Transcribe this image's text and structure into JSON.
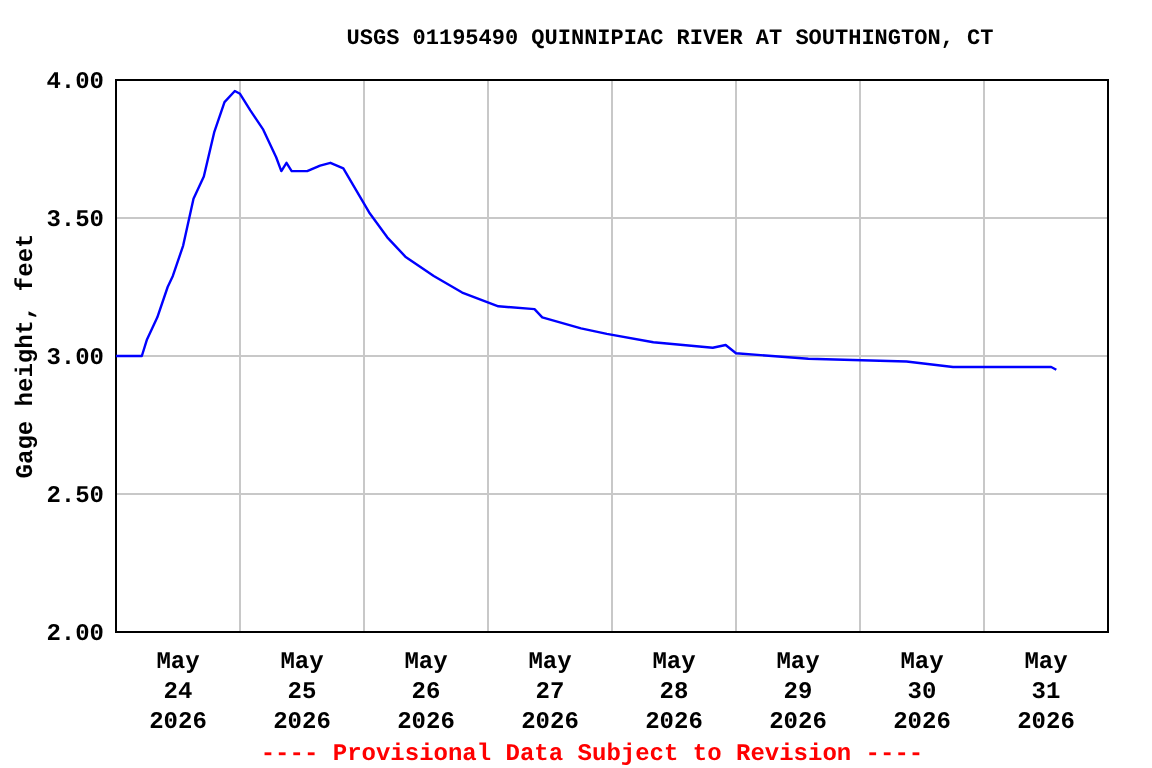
{
  "chart_data": {
    "type": "line",
    "title": "USGS 01195490 QUINNIPIAC RIVER AT SOUTHINGTON, CT",
    "ylabel": "Gage height, feet",
    "annotations": [
      "---- Provisional Data Subject to Revision ----"
    ],
    "series": [
      {
        "color": "#0000ff",
        "x": [
          "2026-05-24T00:00",
          "2026-05-24T05:00",
          "2026-05-24T06:00",
          "2026-05-24T08:00",
          "2026-05-24T10:00",
          "2026-05-24T11:00",
          "2026-05-24T13:00",
          "2026-05-24T15:00",
          "2026-05-24T17:00",
          "2026-05-24T19:00",
          "2026-05-24T21:00",
          "2026-05-24T23:00",
          "2026-05-25T00:00",
          "2026-05-25T02:00",
          "2026-05-25T04:30",
          "2026-05-25T07:00",
          "2026-05-25T08:00",
          "2026-05-25T09:00",
          "2026-05-25T10:00",
          "2026-05-25T13:00",
          "2026-05-25T15:30",
          "2026-05-25T17:30",
          "2026-05-25T20:00",
          "2026-05-25T22:30",
          "2026-05-26T01:00",
          "2026-05-26T04:30",
          "2026-05-26T08:00",
          "2026-05-26T13:30",
          "2026-05-26T19:00",
          "2026-05-27T02:00",
          "2026-05-27T09:00",
          "2026-05-27T10:30",
          "2026-05-27T18:00",
          "2026-05-27T23:00",
          "2026-05-28T08:00",
          "2026-05-28T19:30",
          "2026-05-28T22:00",
          "2026-05-29T00:00",
          "2026-05-29T14:00",
          "2026-05-30T09:00",
          "2026-05-30T18:00",
          "2026-05-31T13:00",
          "2026-05-31T14:00"
        ],
        "values": [
          3.0,
          3.0,
          3.06,
          3.14,
          3.25,
          3.29,
          3.4,
          3.57,
          3.65,
          3.81,
          3.92,
          3.96,
          3.95,
          3.89,
          3.82,
          3.72,
          3.67,
          3.7,
          3.67,
          3.67,
          3.69,
          3.7,
          3.68,
          3.6,
          3.52,
          3.43,
          3.36,
          3.29,
          3.23,
          3.18,
          3.17,
          3.14,
          3.1,
          3.08,
          3.05,
          3.03,
          3.04,
          3.01,
          2.99,
          2.98,
          2.96,
          2.96,
          2.95
        ]
      }
    ],
    "xlim": [
      "2026-05-24T00:00",
      "2026-06-01T00:00"
    ],
    "xticks": [
      {
        "value": "2026-05-24T12:00",
        "label": "May\n24\n2026"
      },
      {
        "value": "2026-05-25T00:00",
        "label": null
      },
      {
        "value": "2026-05-25T12:00",
        "label": "May\n25\n2026"
      },
      {
        "value": "2026-05-26T00:00",
        "label": null
      },
      {
        "value": "2026-05-26T12:00",
        "label": "May\n26\n2026"
      },
      {
        "value": "2026-05-27T00:00",
        "label": null
      },
      {
        "value": "2026-05-27T12:00",
        "label": "May\n27\n2026"
      },
      {
        "value": "2026-05-28T00:00",
        "label": null
      },
      {
        "value": "2026-05-28T12:00",
        "label": "May\n28\n2026"
      },
      {
        "value": "2026-05-29T00:00",
        "label": null
      },
      {
        "value": "2026-05-29T12:00",
        "label": "May\n29\n2026"
      },
      {
        "value": "2026-05-30T00:00",
        "label": null
      },
      {
        "value": "2026-05-30T12:00",
        "label": "May\n30\n2026"
      },
      {
        "value": "2026-05-31T00:00",
        "label": null
      },
      {
        "value": "2026-05-31T12:00",
        "label": "May\n31\n2026"
      }
    ],
    "ylim": [
      2,
      4
    ],
    "yticks": [
      {
        "value": 2,
        "label": "2.00"
      },
      {
        "value": 2.5,
        "label": "2.50"
      },
      {
        "value": 3,
        "label": "3.00"
      },
      {
        "value": 3.5,
        "label": "3.50"
      },
      {
        "value": 4,
        "label": "4.00"
      }
    ],
    "grid": true,
    "marker": "none",
    "line_style": "solid"
  }
}
